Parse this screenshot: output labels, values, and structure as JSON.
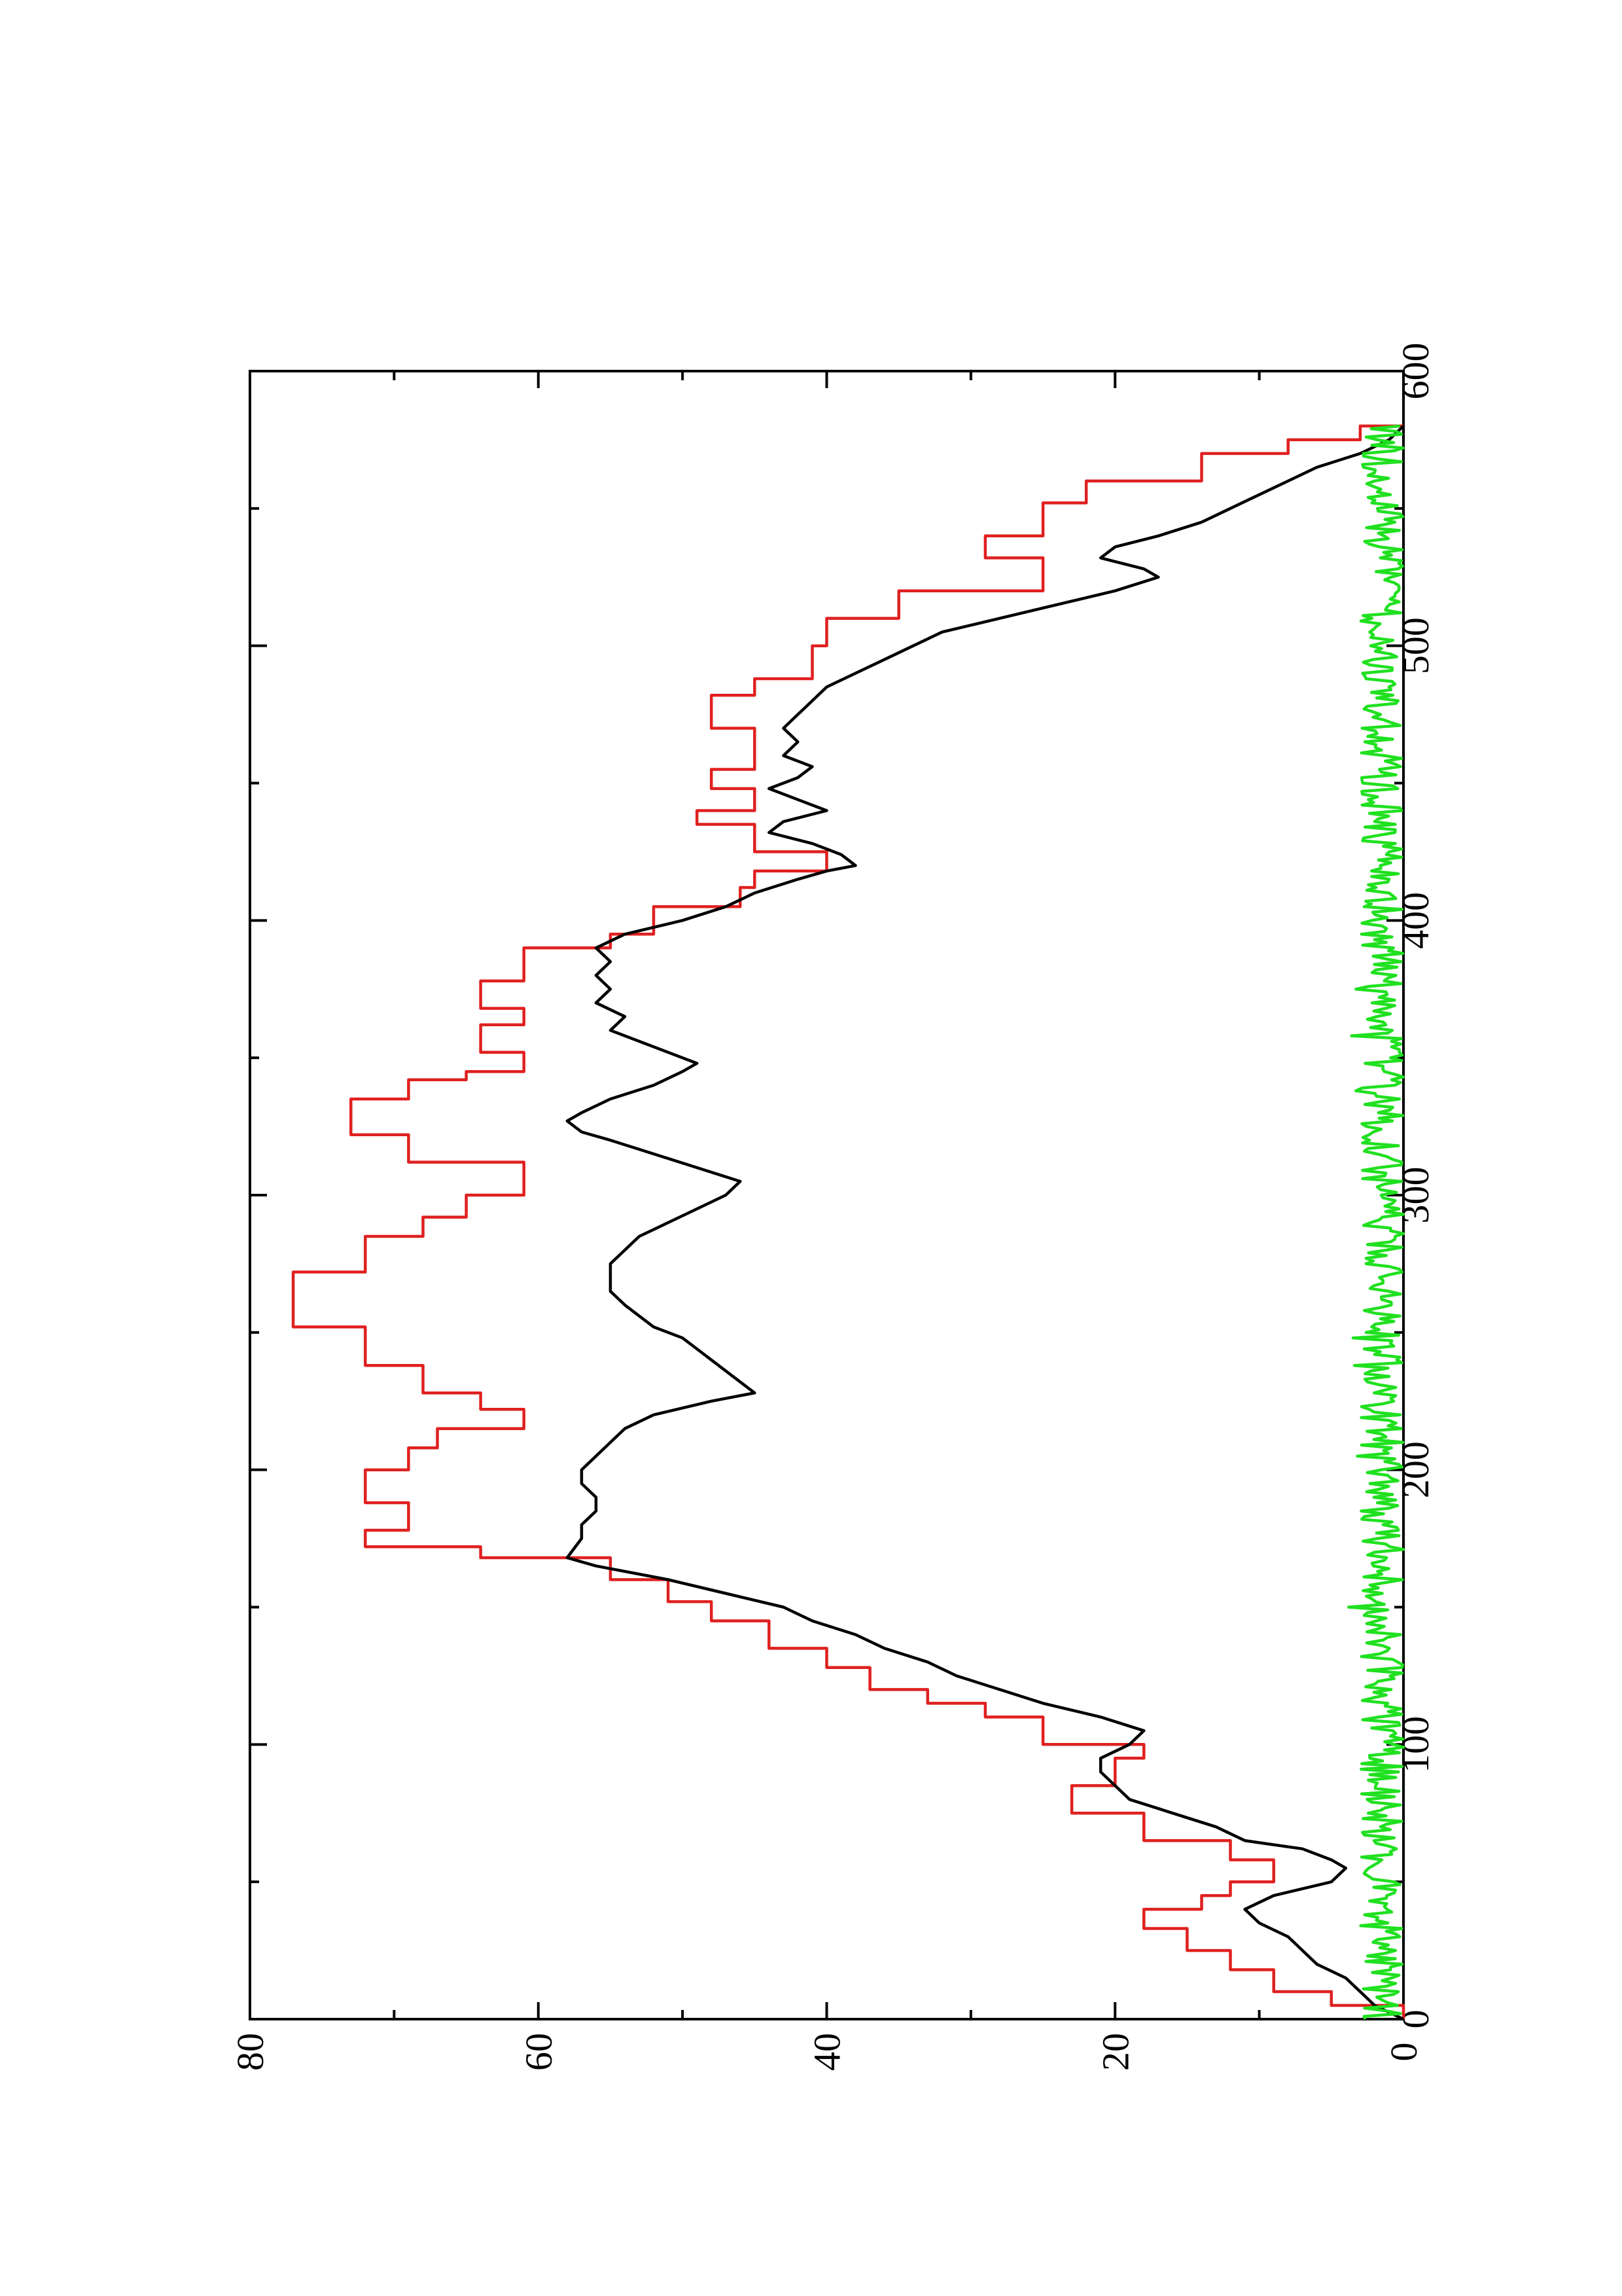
{
  "chart_data": {
    "type": "line",
    "title": "",
    "xlabel": "",
    "ylabel": "",
    "orientation": "rotated-90-ccw",
    "xlim": [
      0,
      600
    ],
    "ylim": [
      0,
      80
    ],
    "x_ticks": [
      0,
      100,
      200,
      300,
      400,
      500,
      600
    ],
    "x_tick_labels": [
      "0",
      "100",
      "200",
      "300",
      "400",
      "500",
      "600"
    ],
    "y_ticks": [
      0,
      20,
      40,
      60,
      80
    ],
    "y_tick_labels": [
      "0",
      "20",
      "40",
      "60",
      "80"
    ],
    "grid": false,
    "legend": "none",
    "series": [
      {
        "color": "#e02020",
        "step": true,
        "points": [
          [
            0,
            0
          ],
          [
            5,
            5
          ],
          [
            10,
            9
          ],
          [
            18,
            12
          ],
          [
            25,
            15
          ],
          [
            33,
            18
          ],
          [
            40,
            14
          ],
          [
            45,
            12
          ],
          [
            50,
            9
          ],
          [
            58,
            12
          ],
          [
            65,
            18
          ],
          [
            75,
            23
          ],
          [
            85,
            20
          ],
          [
            95,
            18
          ],
          [
            100,
            25
          ],
          [
            110,
            29
          ],
          [
            115,
            33
          ],
          [
            120,
            37
          ],
          [
            128,
            40
          ],
          [
            135,
            44
          ],
          [
            145,
            48
          ],
          [
            152,
            51
          ],
          [
            160,
            55
          ],
          [
            168,
            64
          ],
          [
            172,
            72
          ],
          [
            178,
            69
          ],
          [
            188,
            72
          ],
          [
            200,
            69
          ],
          [
            208,
            67
          ],
          [
            215,
            61
          ],
          [
            222,
            64
          ],
          [
            228,
            68
          ],
          [
            238,
            72
          ],
          [
            252,
            77
          ],
          [
            272,
            72
          ],
          [
            285,
            68
          ],
          [
            292,
            65
          ],
          [
            300,
            61
          ],
          [
            312,
            69
          ],
          [
            322,
            73
          ],
          [
            335,
            69
          ],
          [
            342,
            65
          ],
          [
            345,
            61
          ],
          [
            352,
            64
          ],
          [
            362,
            61
          ],
          [
            368,
            64
          ],
          [
            378,
            61
          ],
          [
            390,
            55
          ],
          [
            395,
            52
          ],
          [
            405,
            46
          ],
          [
            412,
            45
          ],
          [
            418,
            40
          ],
          [
            425,
            45
          ],
          [
            435,
            49
          ],
          [
            440,
            45
          ],
          [
            448,
            48
          ],
          [
            455,
            45
          ],
          [
            470,
            48
          ],
          [
            482,
            45
          ],
          [
            488,
            41
          ],
          [
            500,
            40
          ],
          [
            510,
            35
          ],
          [
            520,
            25
          ],
          [
            532,
            29
          ],
          [
            540,
            25
          ],
          [
            552,
            22
          ],
          [
            560,
            14
          ],
          [
            570,
            8
          ],
          [
            575,
            3
          ],
          [
            580,
            0
          ]
        ]
      },
      {
        "color": "#000000",
        "step": false,
        "points": [
          [
            0,
            0
          ],
          [
            5,
            2
          ],
          [
            10,
            3
          ],
          [
            15,
            4
          ],
          [
            20,
            6
          ],
          [
            25,
            7
          ],
          [
            30,
            8
          ],
          [
            35,
            10
          ],
          [
            40,
            11
          ],
          [
            45,
            9
          ],
          [
            50,
            5
          ],
          [
            55,
            4
          ],
          [
            58,
            5
          ],
          [
            62,
            7
          ],
          [
            65,
            11
          ],
          [
            70,
            13
          ],
          [
            75,
            16
          ],
          [
            80,
            19
          ],
          [
            85,
            20
          ],
          [
            90,
            21
          ],
          [
            95,
            21
          ],
          [
            100,
            19
          ],
          [
            105,
            18
          ],
          [
            110,
            21
          ],
          [
            115,
            25
          ],
          [
            120,
            28
          ],
          [
            125,
            31
          ],
          [
            130,
            33
          ],
          [
            135,
            36
          ],
          [
            140,
            38
          ],
          [
            145,
            41
          ],
          [
            150,
            43
          ],
          [
            155,
            47
          ],
          [
            160,
            51
          ],
          [
            165,
            56
          ],
          [
            168,
            58
          ],
          [
            175,
            57
          ],
          [
            180,
            57
          ],
          [
            185,
            56
          ],
          [
            190,
            56
          ],
          [
            195,
            57
          ],
          [
            200,
            57
          ],
          [
            205,
            56
          ],
          [
            210,
            55
          ],
          [
            215,
            54
          ],
          [
            220,
            52
          ],
          [
            225,
            48
          ],
          [
            228,
            45
          ],
          [
            232,
            46
          ],
          [
            236,
            47
          ],
          [
            240,
            48
          ],
          [
            244,
            49
          ],
          [
            248,
            50
          ],
          [
            252,
            52
          ],
          [
            256,
            53
          ],
          [
            260,
            54
          ],
          [
            265,
            55
          ],
          [
            270,
            55
          ],
          [
            275,
            55
          ],
          [
            280,
            54
          ],
          [
            285,
            53
          ],
          [
            290,
            51
          ],
          [
            295,
            49
          ],
          [
            300,
            47
          ],
          [
            305,
            46
          ],
          [
            310,
            49
          ],
          [
            315,
            52
          ],
          [
            320,
            55
          ],
          [
            323,
            57
          ],
          [
            327,
            58
          ],
          [
            330,
            57
          ],
          [
            335,
            55
          ],
          [
            340,
            52
          ],
          [
            345,
            50
          ],
          [
            348,
            49
          ],
          [
            352,
            51
          ],
          [
            356,
            53
          ],
          [
            360,
            55
          ],
          [
            365,
            54
          ],
          [
            370,
            56
          ],
          [
            375,
            55
          ],
          [
            380,
            56
          ],
          [
            385,
            55
          ],
          [
            390,
            56
          ],
          [
            395,
            54
          ],
          [
            400,
            50
          ],
          [
            405,
            47
          ],
          [
            410,
            45
          ],
          [
            415,
            42
          ],
          [
            418,
            40
          ],
          [
            420,
            38
          ],
          [
            424,
            39
          ],
          [
            428,
            41
          ],
          [
            432,
            44
          ],
          [
            436,
            43
          ],
          [
            440,
            40
          ],
          [
            444,
            42
          ],
          [
            448,
            44
          ],
          [
            452,
            42
          ],
          [
            456,
            41
          ],
          [
            460,
            43
          ],
          [
            465,
            42
          ],
          [
            470,
            43
          ],
          [
            475,
            42
          ],
          [
            480,
            41
          ],
          [
            485,
            40
          ],
          [
            490,
            38
          ],
          [
            495,
            36
          ],
          [
            500,
            34
          ],
          [
            505,
            32
          ],
          [
            510,
            28
          ],
          [
            515,
            24
          ],
          [
            520,
            20
          ],
          [
            525,
            17
          ],
          [
            528,
            18
          ],
          [
            532,
            21
          ],
          [
            536,
            20
          ],
          [
            540,
            17
          ],
          [
            545,
            14
          ],
          [
            550,
            12
          ],
          [
            555,
            10
          ],
          [
            560,
            8
          ],
          [
            565,
            6
          ],
          [
            570,
            3
          ],
          [
            575,
            1
          ],
          [
            580,
            0
          ]
        ]
      },
      {
        "color": "#20e020",
        "step": false,
        "noise": true,
        "x_range": [
          0,
          580
        ],
        "y_range": [
          0,
          3.5
        ],
        "spikes": [
          [
            150,
            3.8
          ],
          [
            205,
            3.2
          ],
          [
            238,
            3.4
          ],
          [
            248,
            3.5
          ],
          [
            338,
            3.3
          ],
          [
            358,
            3.6
          ],
          [
            375,
            3.3
          ]
        ]
      }
    ]
  }
}
